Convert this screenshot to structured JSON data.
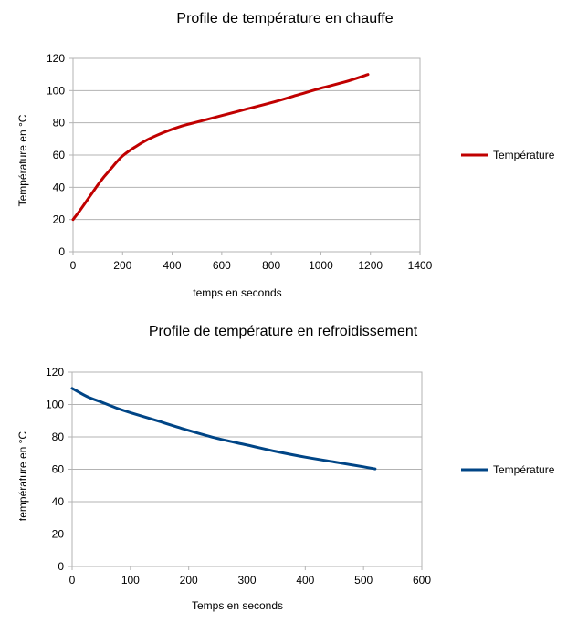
{
  "chart_data": [
    {
      "id": "heating",
      "type": "line",
      "title": "Profile de température en chauffe",
      "xlabel": "temps en seconds",
      "ylabel": "Température en °C",
      "xlim": [
        0,
        1400
      ],
      "ylim": [
        0,
        120
      ],
      "xticks": [
        0,
        200,
        400,
        600,
        800,
        1000,
        1200,
        1400
      ],
      "yticks": [
        0,
        20,
        40,
        60,
        80,
        100,
        120
      ],
      "grid": "horizontal",
      "legend": "right",
      "series": [
        {
          "name": "Température",
          "color": "#c00000",
          "x": [
            0,
            25,
            50,
            75,
            100,
            125,
            150,
            175,
            200,
            250,
            300,
            350,
            400,
            450,
            500,
            600,
            700,
            800,
            900,
            1000,
            1100,
            1190
          ],
          "y": [
            20,
            25,
            30.5,
            36,
            41.5,
            46.5,
            51,
            55.5,
            59.5,
            65,
            69.5,
            73,
            76,
            78.5,
            80.5,
            84.5,
            88.5,
            92.5,
            97,
            101.5,
            105.5,
            110
          ]
        }
      ]
    },
    {
      "id": "cooling",
      "type": "line",
      "title": "Profile de température en refroidissement",
      "xlabel": "Temps en seconds",
      "ylabel": "température en °C",
      "xlim": [
        0,
        600
      ],
      "ylim": [
        0,
        120
      ],
      "xticks": [
        0,
        100,
        200,
        300,
        400,
        500,
        600
      ],
      "yticks": [
        0,
        20,
        40,
        60,
        80,
        100,
        120
      ],
      "grid": "horizontal",
      "legend": "right",
      "series": [
        {
          "name": "Température",
          "color": "#004586",
          "x": [
            0,
            25,
            50,
            75,
            100,
            150,
            200,
            250,
            300,
            350,
            400,
            450,
            500,
            520
          ],
          "y": [
            110,
            105,
            101.5,
            98,
            95,
            89.5,
            84,
            79,
            75,
            71,
            67.5,
            64.5,
            61.5,
            60.2
          ]
        }
      ]
    }
  ]
}
